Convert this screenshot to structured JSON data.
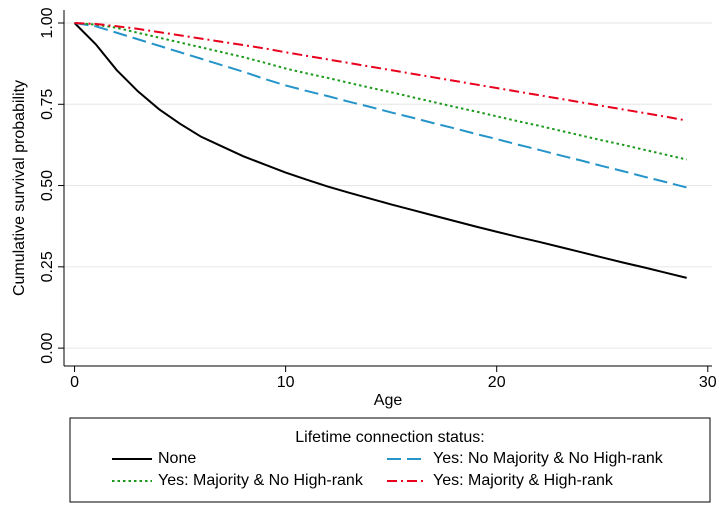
{
  "chart_data": {
    "type": "line",
    "xlabel": "Age",
    "ylabel": "Cumulative survival probability",
    "legend_title": "Lifetime connection status:",
    "legend_position": "bottom",
    "grid": true,
    "x": [
      0,
      1,
      2,
      3,
      4,
      5,
      6,
      7,
      8,
      9,
      10,
      11,
      12,
      13,
      14,
      15,
      16,
      17,
      18,
      19,
      20,
      21,
      22,
      23,
      24,
      25,
      26,
      27,
      28,
      29
    ],
    "xlim": [
      -0.5,
      30.2
    ],
    "xticks": [
      0,
      10,
      20,
      30
    ],
    "ylim": [
      -0.055,
      1.04
    ],
    "yticks": [
      {
        "value": 0,
        "label": "0.00"
      },
      {
        "value": 0.25,
        "label": "0.25"
      },
      {
        "value": 0.5,
        "label": "0.50"
      },
      {
        "value": 0.75,
        "label": "0.75"
      },
      {
        "value": 1,
        "label": "1.00"
      }
    ],
    "series": [
      {
        "name": "None",
        "color": "#000000",
        "dash": "solid",
        "values": [
          1,
          0.935,
          0.855,
          0.79,
          0.735,
          0.69,
          0.65,
          0.62,
          0.59,
          0.565,
          0.54,
          0.518,
          0.497,
          0.478,
          0.46,
          0.442,
          0.425,
          0.408,
          0.391,
          0.374,
          0.358,
          0.342,
          0.327,
          0.311,
          0.295,
          0.279,
          0.263,
          0.248,
          0.232,
          0.216
        ]
      },
      {
        "name": "Yes: No Majority & No High-rank",
        "color": "#2494c9",
        "dash": "long-dash",
        "values": [
          1,
          0.99,
          0.97,
          0.95,
          0.93,
          0.91,
          0.89,
          0.87,
          0.85,
          0.828,
          0.808,
          0.791,
          0.775,
          0.758,
          0.742,
          0.725,
          0.709,
          0.692,
          0.676,
          0.659,
          0.643,
          0.626,
          0.61,
          0.593,
          0.577,
          0.56,
          0.544,
          0.527,
          0.511,
          0.494
        ]
      },
      {
        "name": "Yes: Majority & No High-rank",
        "color": "#1a9a1a",
        "dash": "dot",
        "values": [
          1,
          0.995,
          0.985,
          0.97,
          0.955,
          0.94,
          0.925,
          0.91,
          0.895,
          0.878,
          0.86,
          0.845,
          0.831,
          0.816,
          0.801,
          0.787,
          0.772,
          0.757,
          0.742,
          0.728,
          0.713,
          0.698,
          0.684,
          0.669,
          0.654,
          0.639,
          0.625,
          0.61,
          0.595,
          0.58
        ]
      },
      {
        "name": "Yes: Majority & High-rank",
        "color": "#e8001c",
        "dash": "dash-dot",
        "values": [
          1,
          0.997,
          0.99,
          0.982,
          0.972,
          0.962,
          0.952,
          0.942,
          0.932,
          0.922,
          0.91,
          0.899,
          0.888,
          0.877,
          0.866,
          0.855,
          0.844,
          0.833,
          0.822,
          0.811,
          0.8,
          0.789,
          0.778,
          0.767,
          0.756,
          0.745,
          0.734,
          0.723,
          0.712,
          0.7
        ]
      }
    ]
  }
}
